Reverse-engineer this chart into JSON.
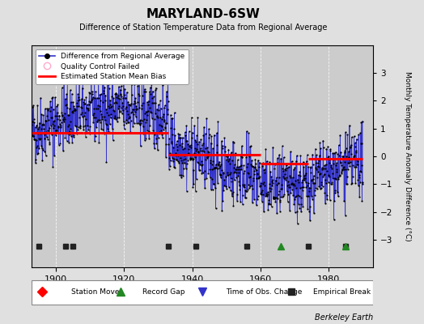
{
  "title": "MARYLAND-6SW",
  "subtitle": "Difference of Station Temperature Data from Regional Average",
  "ylabel": "Monthly Temperature Anomaly Difference (°C)",
  "xlim": [
    1893,
    1993
  ],
  "ylim": [
    -4,
    4
  ],
  "xticks": [
    1900,
    1920,
    1940,
    1960,
    1980
  ],
  "yticks_right": [
    -3,
    -2,
    -1,
    0,
    1,
    2,
    3
  ],
  "background_color": "#e0e0e0",
  "plot_bg_color": "#cccccc",
  "grid_color": "#ffffff",
  "line_color": "#3333cc",
  "dot_color": "#000000",
  "bias_color": "#ff0000",
  "watermark": "Berkeley Earth",
  "seed": 42,
  "start_year": 1893,
  "end_year": 1990,
  "bias_segments": [
    {
      "start": 1893,
      "end": 1908,
      "value": 0.85
    },
    {
      "start": 1908,
      "end": 1933,
      "value": 0.85
    },
    {
      "start": 1933,
      "end": 1960,
      "value": 0.05
    },
    {
      "start": 1960,
      "end": 1974,
      "value": -0.25
    },
    {
      "start": 1974,
      "end": 1980,
      "value": -0.1
    },
    {
      "start": 1980,
      "end": 1990,
      "value": -0.1
    }
  ],
  "empirical_breaks": [
    1895,
    1903,
    1905,
    1933,
    1941,
    1956,
    1974,
    1985
  ],
  "record_gaps": [
    1966,
    1985
  ],
  "station_moves": [],
  "time_obs_changes": []
}
